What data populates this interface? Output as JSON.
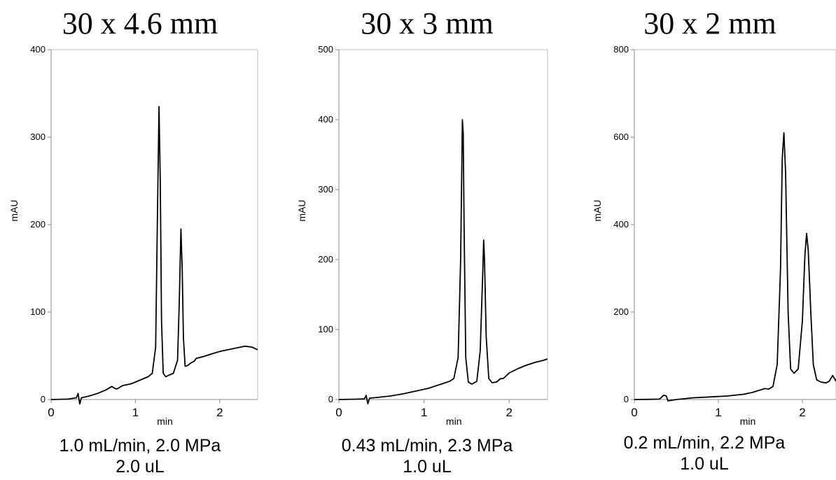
{
  "chart_data": [
    {
      "type": "line",
      "title": "30 x 4.6 mm",
      "xlabel": "min",
      "ylabel": "mAU",
      "xlim": [
        0,
        2.45
      ],
      "ylim": [
        0,
        400
      ],
      "xticks": [
        "0",
        "1",
        "2"
      ],
      "yticks": [
        "0",
        "100",
        "200",
        "300",
        "400"
      ],
      "caption_line1": "1.0 mL/min, 2.0 MPa",
      "caption_line2": "2.0 uL",
      "series": [
        {
          "x": [
            0,
            0.2,
            0.3,
            0.32,
            0.34,
            0.36,
            0.45,
            0.55,
            0.65,
            0.72,
            0.75,
            0.78,
            0.85,
            0.95,
            1.05,
            1.1,
            1.15,
            1.2,
            1.24,
            1.26,
            1.28,
            1.295,
            1.31,
            1.33,
            1.36,
            1.4,
            1.45,
            1.5,
            1.52,
            1.54,
            1.555,
            1.57,
            1.59,
            1.62,
            1.66,
            1.7,
            1.72,
            1.8,
            1.9,
            2.0,
            2.1,
            2.2,
            2.3,
            2.38,
            2.45
          ],
          "y": [
            0,
            0.5,
            2,
            7,
            -5,
            2,
            4,
            7,
            11,
            15,
            13,
            12,
            16,
            18,
            22,
            24,
            26,
            30,
            60,
            200,
            335,
            250,
            90,
            30,
            26,
            28,
            30,
            45,
            110,
            195,
            150,
            70,
            38,
            39,
            42,
            44,
            47,
            49,
            52,
            55,
            57,
            59,
            61,
            60,
            57
          ]
        }
      ]
    },
    {
      "type": "line",
      "title": "30 x 3 mm",
      "xlabel": "min",
      "ylabel": "mAU",
      "xlim": [
        0,
        2.45
      ],
      "ylim": [
        0,
        500
      ],
      "xticks": [
        "0",
        "1",
        "2"
      ],
      "yticks": [
        "0",
        "100",
        "200",
        "300",
        "400",
        "500"
      ],
      "caption_line1": "0.43 mL/min, 2.3 MPa",
      "caption_line2": "1.0 uL",
      "series": [
        {
          "x": [
            0,
            0.2,
            0.3,
            0.32,
            0.34,
            0.36,
            0.45,
            0.6,
            0.75,
            0.9,
            1.05,
            1.2,
            1.3,
            1.35,
            1.4,
            1.43,
            1.45,
            1.46,
            1.47,
            1.49,
            1.52,
            1.56,
            1.62,
            1.66,
            1.69,
            1.7,
            1.71,
            1.73,
            1.76,
            1.8,
            1.85,
            1.88,
            1.9,
            1.93,
            2.0,
            2.1,
            2.2,
            2.3,
            2.4,
            2.45
          ],
          "y": [
            0,
            0.5,
            1,
            6,
            -6,
            2,
            3,
            5,
            8,
            12,
            16,
            22,
            26,
            30,
            60,
            200,
            400,
            380,
            250,
            60,
            25,
            22,
            26,
            70,
            185,
            228,
            200,
            90,
            30,
            24,
            25,
            28,
            30,
            30,
            38,
            44,
            49,
            53,
            56,
            58
          ]
        }
      ]
    },
    {
      "type": "line",
      "title": "30 x 2 mm",
      "xlabel": "min",
      "ylabel": "mAU",
      "xlim": [
        0,
        2.4
      ],
      "ylim": [
        0,
        800
      ],
      "xticks": [
        "0",
        "1",
        "2"
      ],
      "yticks": [
        "0",
        "200",
        "400",
        "600",
        "800"
      ],
      "caption_line1": "0.2 mL/min, 2.2 MPa",
      "caption_line2": "1.0 uL",
      "series": [
        {
          "x": [
            0,
            0.2,
            0.3,
            0.35,
            0.38,
            0.4,
            0.5,
            0.7,
            0.9,
            1.1,
            1.3,
            1.4,
            1.5,
            1.55,
            1.6,
            1.65,
            1.7,
            1.74,
            1.76,
            1.78,
            1.8,
            1.83,
            1.86,
            1.9,
            1.95,
            2.0,
            2.03,
            2.05,
            2.07,
            2.1,
            2.13,
            2.17,
            2.22,
            2.28,
            2.32,
            2.36,
            2.4
          ],
          "y": [
            0,
            0.5,
            1,
            10,
            8,
            -3,
            0,
            4,
            6,
            8,
            12,
            16,
            22,
            25,
            24,
            30,
            80,
            300,
            550,
            610,
            520,
            200,
            70,
            60,
            70,
            180,
            330,
            380,
            340,
            200,
            80,
            45,
            40,
            38,
            42,
            55,
            42
          ]
        }
      ]
    }
  ]
}
